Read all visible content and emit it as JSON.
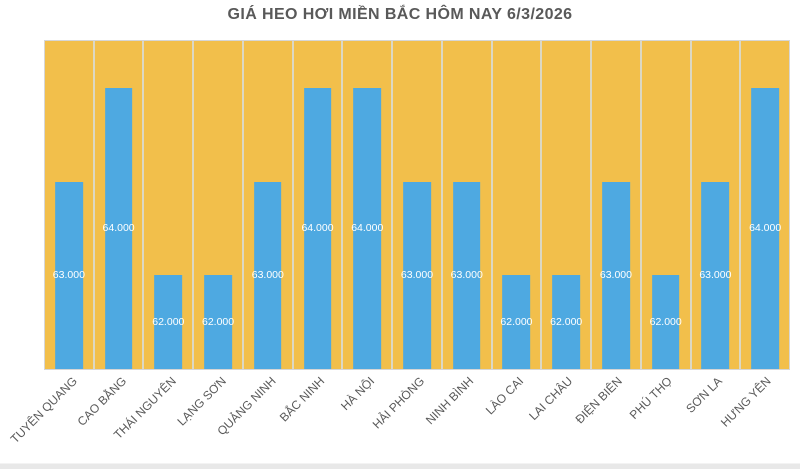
{
  "title": "GIÁ HEO HƠI MIỀN BẮC HÔM NAY 6/3/2026",
  "chart_data": {
    "type": "bar",
    "title": "GIÁ HEO HƠI MIỀN BẮC HÔM NAY 6/3/2026",
    "categories": [
      "TUYÊN QUANG",
      "CAO BẰNG",
      "THÁI NGUYÊN",
      "LẠNG SƠN",
      "QUẢNG NINH",
      "BẮC NINH",
      "HÀ NỘI",
      "HẢI PHÒNG",
      "NINH BÌNH",
      "LÀO CAI",
      "LAI CHÂU",
      "ĐIỆN BIÊN",
      "PHÚ THỌ",
      "SƠN LA",
      "HƯNG YÊN"
    ],
    "values": [
      63000,
      64000,
      62000,
      62000,
      63000,
      64000,
      64000,
      63000,
      63000,
      62000,
      62000,
      63000,
      62000,
      63000,
      64000
    ],
    "value_labels": [
      "63.000",
      "64.000",
      "62.000",
      "62.000",
      "63.000",
      "64.000",
      "64.000",
      "63.000",
      "63.000",
      "62.000",
      "62.000",
      "63.000",
      "62.000",
      "63.000",
      "64.000"
    ],
    "xlabel": "",
    "ylabel": "",
    "ylim": [
      61000,
      64500
    ],
    "value_axis_visible": false,
    "legend": "none",
    "grid": "vertical category separators on orange plot background",
    "data_label_position": "center of bar",
    "colors": {
      "bar_fill": "#4EA9E1",
      "plot_background": "#F2BF4B",
      "gridline": "#DCD8C4",
      "plot_border": "#D6D6D6",
      "title_text": "#595959",
      "category_text": "#595959",
      "value_label_text": "#FFFFFF",
      "page_background": "#FFFFFF",
      "bottom_strip": "#E8E8E8"
    }
  }
}
